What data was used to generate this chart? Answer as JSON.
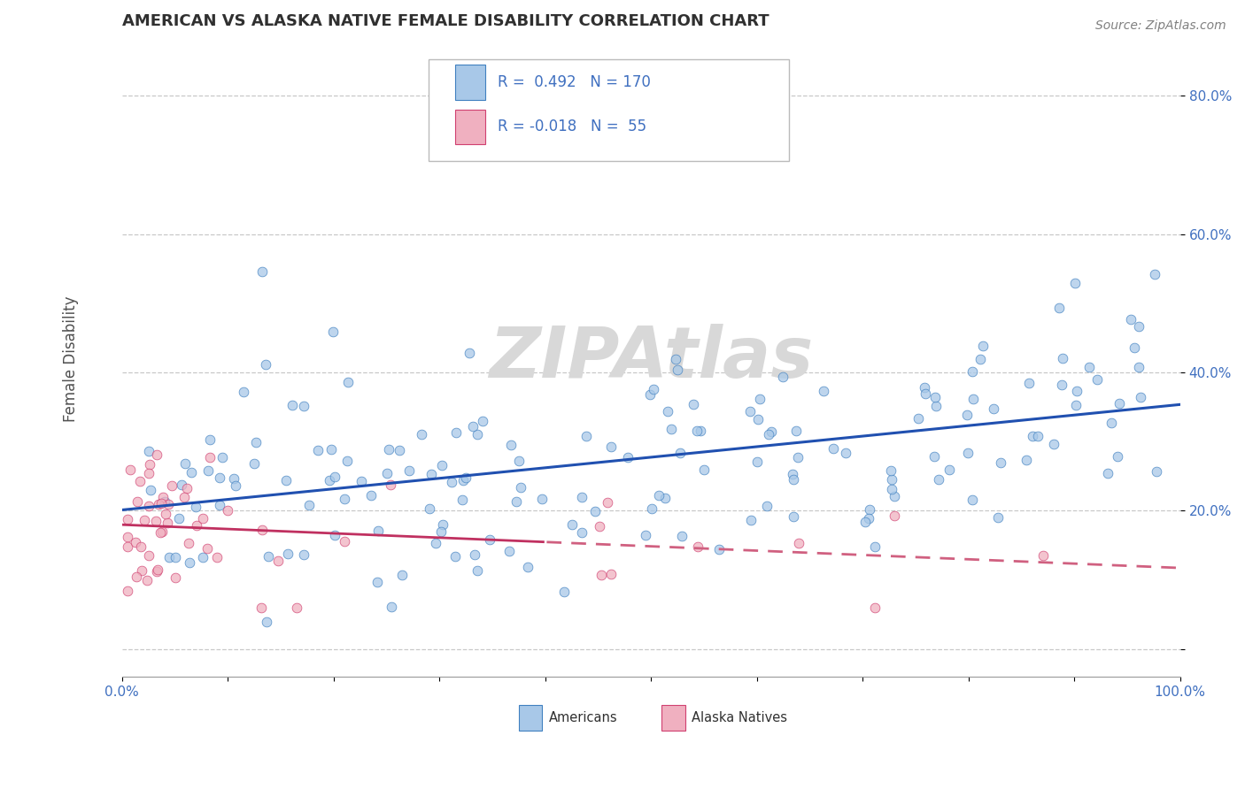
{
  "title": "AMERICAN VS ALASKA NATIVE FEMALE DISABILITY CORRELATION CHART",
  "source_text": "Source: ZipAtlas.com",
  "ylabel": "Female Disability",
  "xlim": [
    0.0,
    1.0
  ],
  "ylim": [
    -0.04,
    0.88
  ],
  "xtick_positions": [
    0.0,
    0.1,
    0.2,
    0.3,
    0.4,
    0.5,
    0.6,
    0.7,
    0.8,
    0.9,
    1.0
  ],
  "xticklabels": [
    "0.0%",
    "",
    "",
    "",
    "",
    "",
    "",
    "",
    "",
    "",
    "100.0%"
  ],
  "ytick_positions": [
    0.0,
    0.2,
    0.4,
    0.6,
    0.8
  ],
  "yticklabels": [
    "",
    "20.0%",
    "40.0%",
    "60.0%",
    "80.0%"
  ],
  "R_american": 0.492,
  "N_american": 170,
  "R_alaska": -0.018,
  "N_alaska": 55,
  "american_fill": "#a8c8e8",
  "american_edge": "#4080c0",
  "alaska_fill": "#f0b0c0",
  "alaska_edge": "#d04070",
  "trend_american_color": "#2050b0",
  "trend_alaska_solid_color": "#c03060",
  "trend_alaska_dash_color": "#d06080",
  "background_color": "#ffffff",
  "grid_color": "#c8c8c8",
  "title_color": "#303030",
  "tick_color": "#4070c0",
  "legend_color": "#4070c0",
  "watermark_color": "#d8d8d8",
  "scatter_size": 60,
  "scatter_alpha": 0.75
}
